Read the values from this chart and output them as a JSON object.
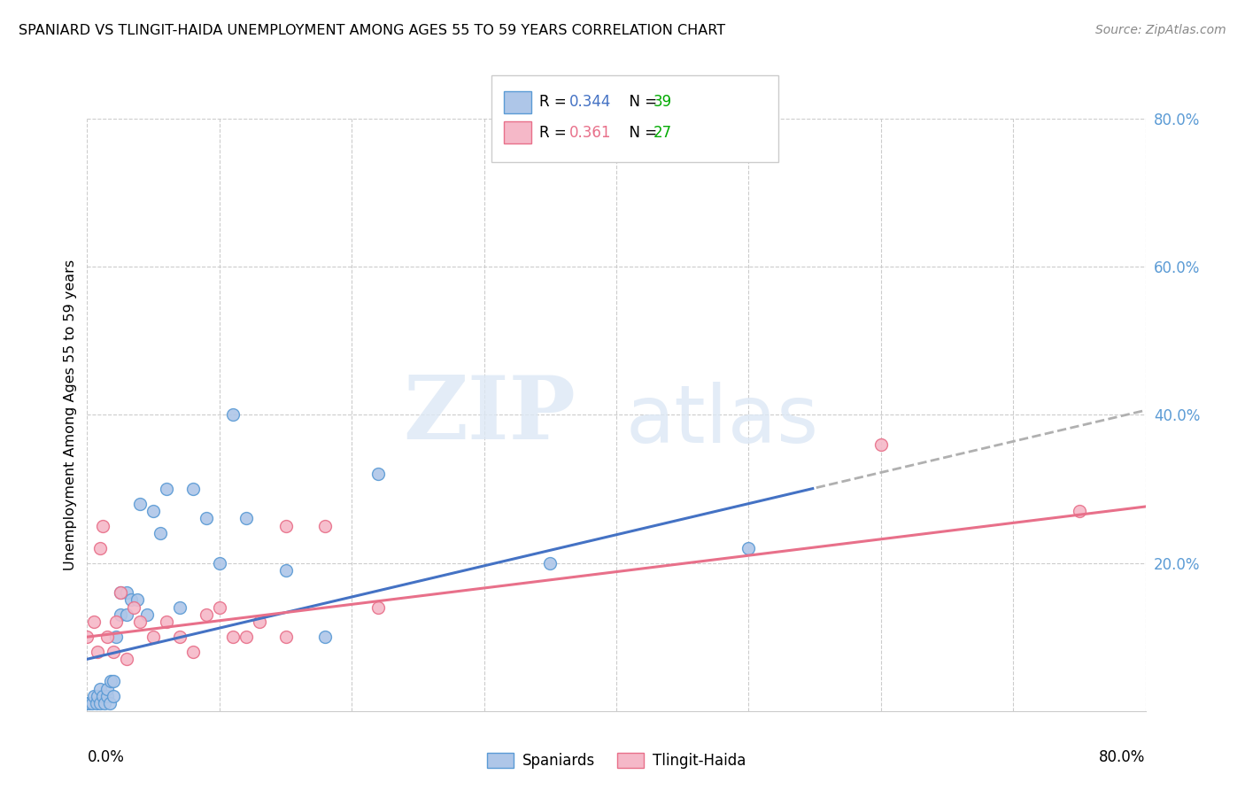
{
  "title": "SPANIARD VS TLINGIT-HAIDA UNEMPLOYMENT AMONG AGES 55 TO 59 YEARS CORRELATION CHART",
  "source": "Source: ZipAtlas.com",
  "ylabel": "Unemployment Among Ages 55 to 59 years",
  "ytick_labels": [
    "20.0%",
    "40.0%",
    "60.0%",
    "80.0%"
  ],
  "ytick_values": [
    0.2,
    0.4,
    0.6,
    0.8
  ],
  "xlim": [
    0.0,
    0.8
  ],
  "ylim": [
    0.0,
    0.8
  ],
  "spaniards_color": "#aec6e8",
  "tlingit_color": "#f5b8c8",
  "spaniards_edge_color": "#5b9bd5",
  "tlingit_edge_color": "#e8708a",
  "spaniards_trend_color": "#4472c4",
  "tlingit_trend_color": "#e8708a",
  "spaniards_dash_color": "#b0b0b0",
  "spaniards_R": 0.344,
  "spaniards_N": 39,
  "tlingit_R": 0.361,
  "tlingit_N": 27,
  "N_color": "#00aa00",
  "R_value_color_sp": "#4472c4",
  "R_value_color_tl": "#e8708a",
  "spaniards_x": [
    0.0,
    0.002,
    0.004,
    0.005,
    0.007,
    0.008,
    0.01,
    0.01,
    0.012,
    0.013,
    0.015,
    0.015,
    0.017,
    0.018,
    0.02,
    0.02,
    0.022,
    0.025,
    0.025,
    0.03,
    0.03,
    0.033,
    0.038,
    0.04,
    0.045,
    0.05,
    0.055,
    0.06,
    0.07,
    0.08,
    0.09,
    0.1,
    0.11,
    0.12,
    0.15,
    0.18,
    0.22,
    0.35,
    0.5
  ],
  "spaniards_y": [
    0.01,
    0.01,
    0.01,
    0.02,
    0.01,
    0.02,
    0.01,
    0.03,
    0.02,
    0.01,
    0.02,
    0.03,
    0.01,
    0.04,
    0.02,
    0.04,
    0.1,
    0.13,
    0.16,
    0.13,
    0.16,
    0.15,
    0.15,
    0.28,
    0.13,
    0.27,
    0.24,
    0.3,
    0.14,
    0.3,
    0.26,
    0.2,
    0.4,
    0.26,
    0.19,
    0.1,
    0.32,
    0.2,
    0.22
  ],
  "tlingit_x": [
    0.0,
    0.005,
    0.008,
    0.01,
    0.012,
    0.015,
    0.02,
    0.022,
    0.025,
    0.03,
    0.035,
    0.04,
    0.05,
    0.06,
    0.07,
    0.08,
    0.09,
    0.1,
    0.11,
    0.12,
    0.13,
    0.15,
    0.15,
    0.18,
    0.22,
    0.6,
    0.75
  ],
  "tlingit_y": [
    0.1,
    0.12,
    0.08,
    0.22,
    0.25,
    0.1,
    0.08,
    0.12,
    0.16,
    0.07,
    0.14,
    0.12,
    0.1,
    0.12,
    0.1,
    0.08,
    0.13,
    0.14,
    0.1,
    0.1,
    0.12,
    0.25,
    0.1,
    0.25,
    0.14,
    0.36,
    0.27
  ],
  "sp_trend_intercept": 0.07,
  "sp_trend_slope": 0.42,
  "tl_trend_intercept": 0.1,
  "tl_trend_slope": 0.22
}
